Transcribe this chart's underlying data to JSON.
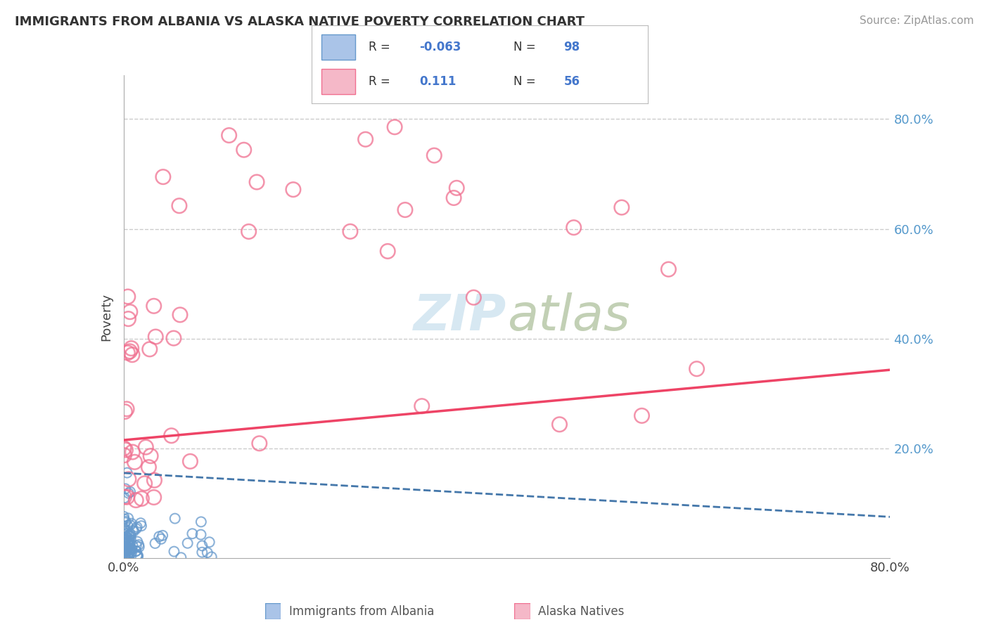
{
  "title": "IMMIGRANTS FROM ALBANIA VS ALASKA NATIVE POVERTY CORRELATION CHART",
  "source": "Source: ZipAtlas.com",
  "ylabel": "Poverty",
  "xlim": [
    0.0,
    0.8
  ],
  "ylim": [
    0.0,
    0.88
  ],
  "blue_scatter_color": "#6699cc",
  "pink_scatter_color": "#f07090",
  "blue_line_color": "#4477aa",
  "pink_line_color": "#ee4466",
  "background_color": "#ffffff",
  "blue_R": -0.063,
  "blue_N": 98,
  "pink_R": 0.111,
  "pink_N": 56,
  "blue_intercept": 0.155,
  "blue_slope": -0.1,
  "pink_intercept": 0.215,
  "pink_slope": 0.16,
  "legend_blue_color": "#aac4e8",
  "legend_pink_color": "#f5b8c8",
  "legend_blue_edge": "#6699cc",
  "legend_pink_edge": "#f07090",
  "legend_text_color": "#333333",
  "legend_value_color": "#4477cc",
  "ytick_color": "#5599cc",
  "watermark_color": "#d0e4f0"
}
